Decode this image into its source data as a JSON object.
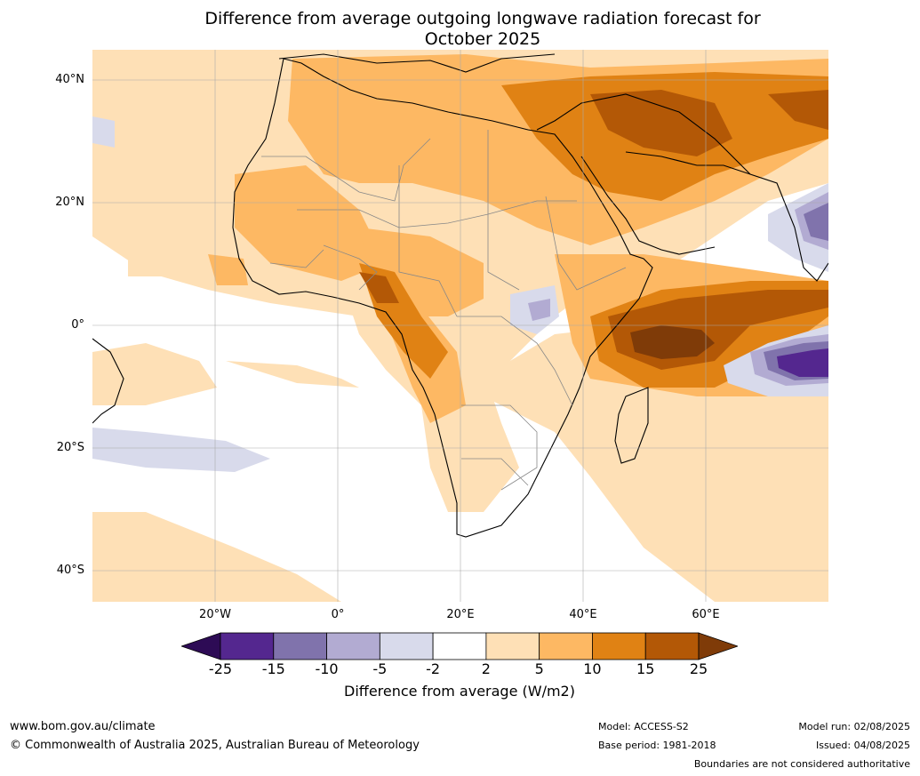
{
  "title_line1": "Difference from average outgoing longwave radiation forecast for",
  "title_line2": "October 2025",
  "map": {
    "lat_labels": [
      "40°N",
      "20°N",
      "0°",
      "20°S",
      "40°S"
    ],
    "lon_labels": [
      "20°W",
      "0°",
      "20°E",
      "40°E",
      "60°E"
    ]
  },
  "legend": {
    "title": "Difference from average (W/m2)",
    "ticks": [
      "-25",
      "-15",
      "-10",
      "-5",
      "-2",
      "2",
      "5",
      "10",
      "15",
      "25"
    ],
    "colors": [
      "#2d0b55",
      "#54278f",
      "#8073ac",
      "#b2abd2",
      "#d8daeb",
      "#ffffff",
      "#fee0b6",
      "#fdb863",
      "#e08214",
      "#b35806",
      "#7f3b08"
    ]
  },
  "footer": {
    "website": "www.bom.gov.au/climate",
    "copyright": "© Commonwealth of Australia 2025, Australian Bureau of Meteorology",
    "model": "Model: ACCESS-S2",
    "base_period": "Base period: 1981-2018",
    "model_run": "Model run: 02/08/2025",
    "issued": "Issued: 04/08/2025",
    "disclaimer": "Boundaries are not considered authoritative"
  }
}
